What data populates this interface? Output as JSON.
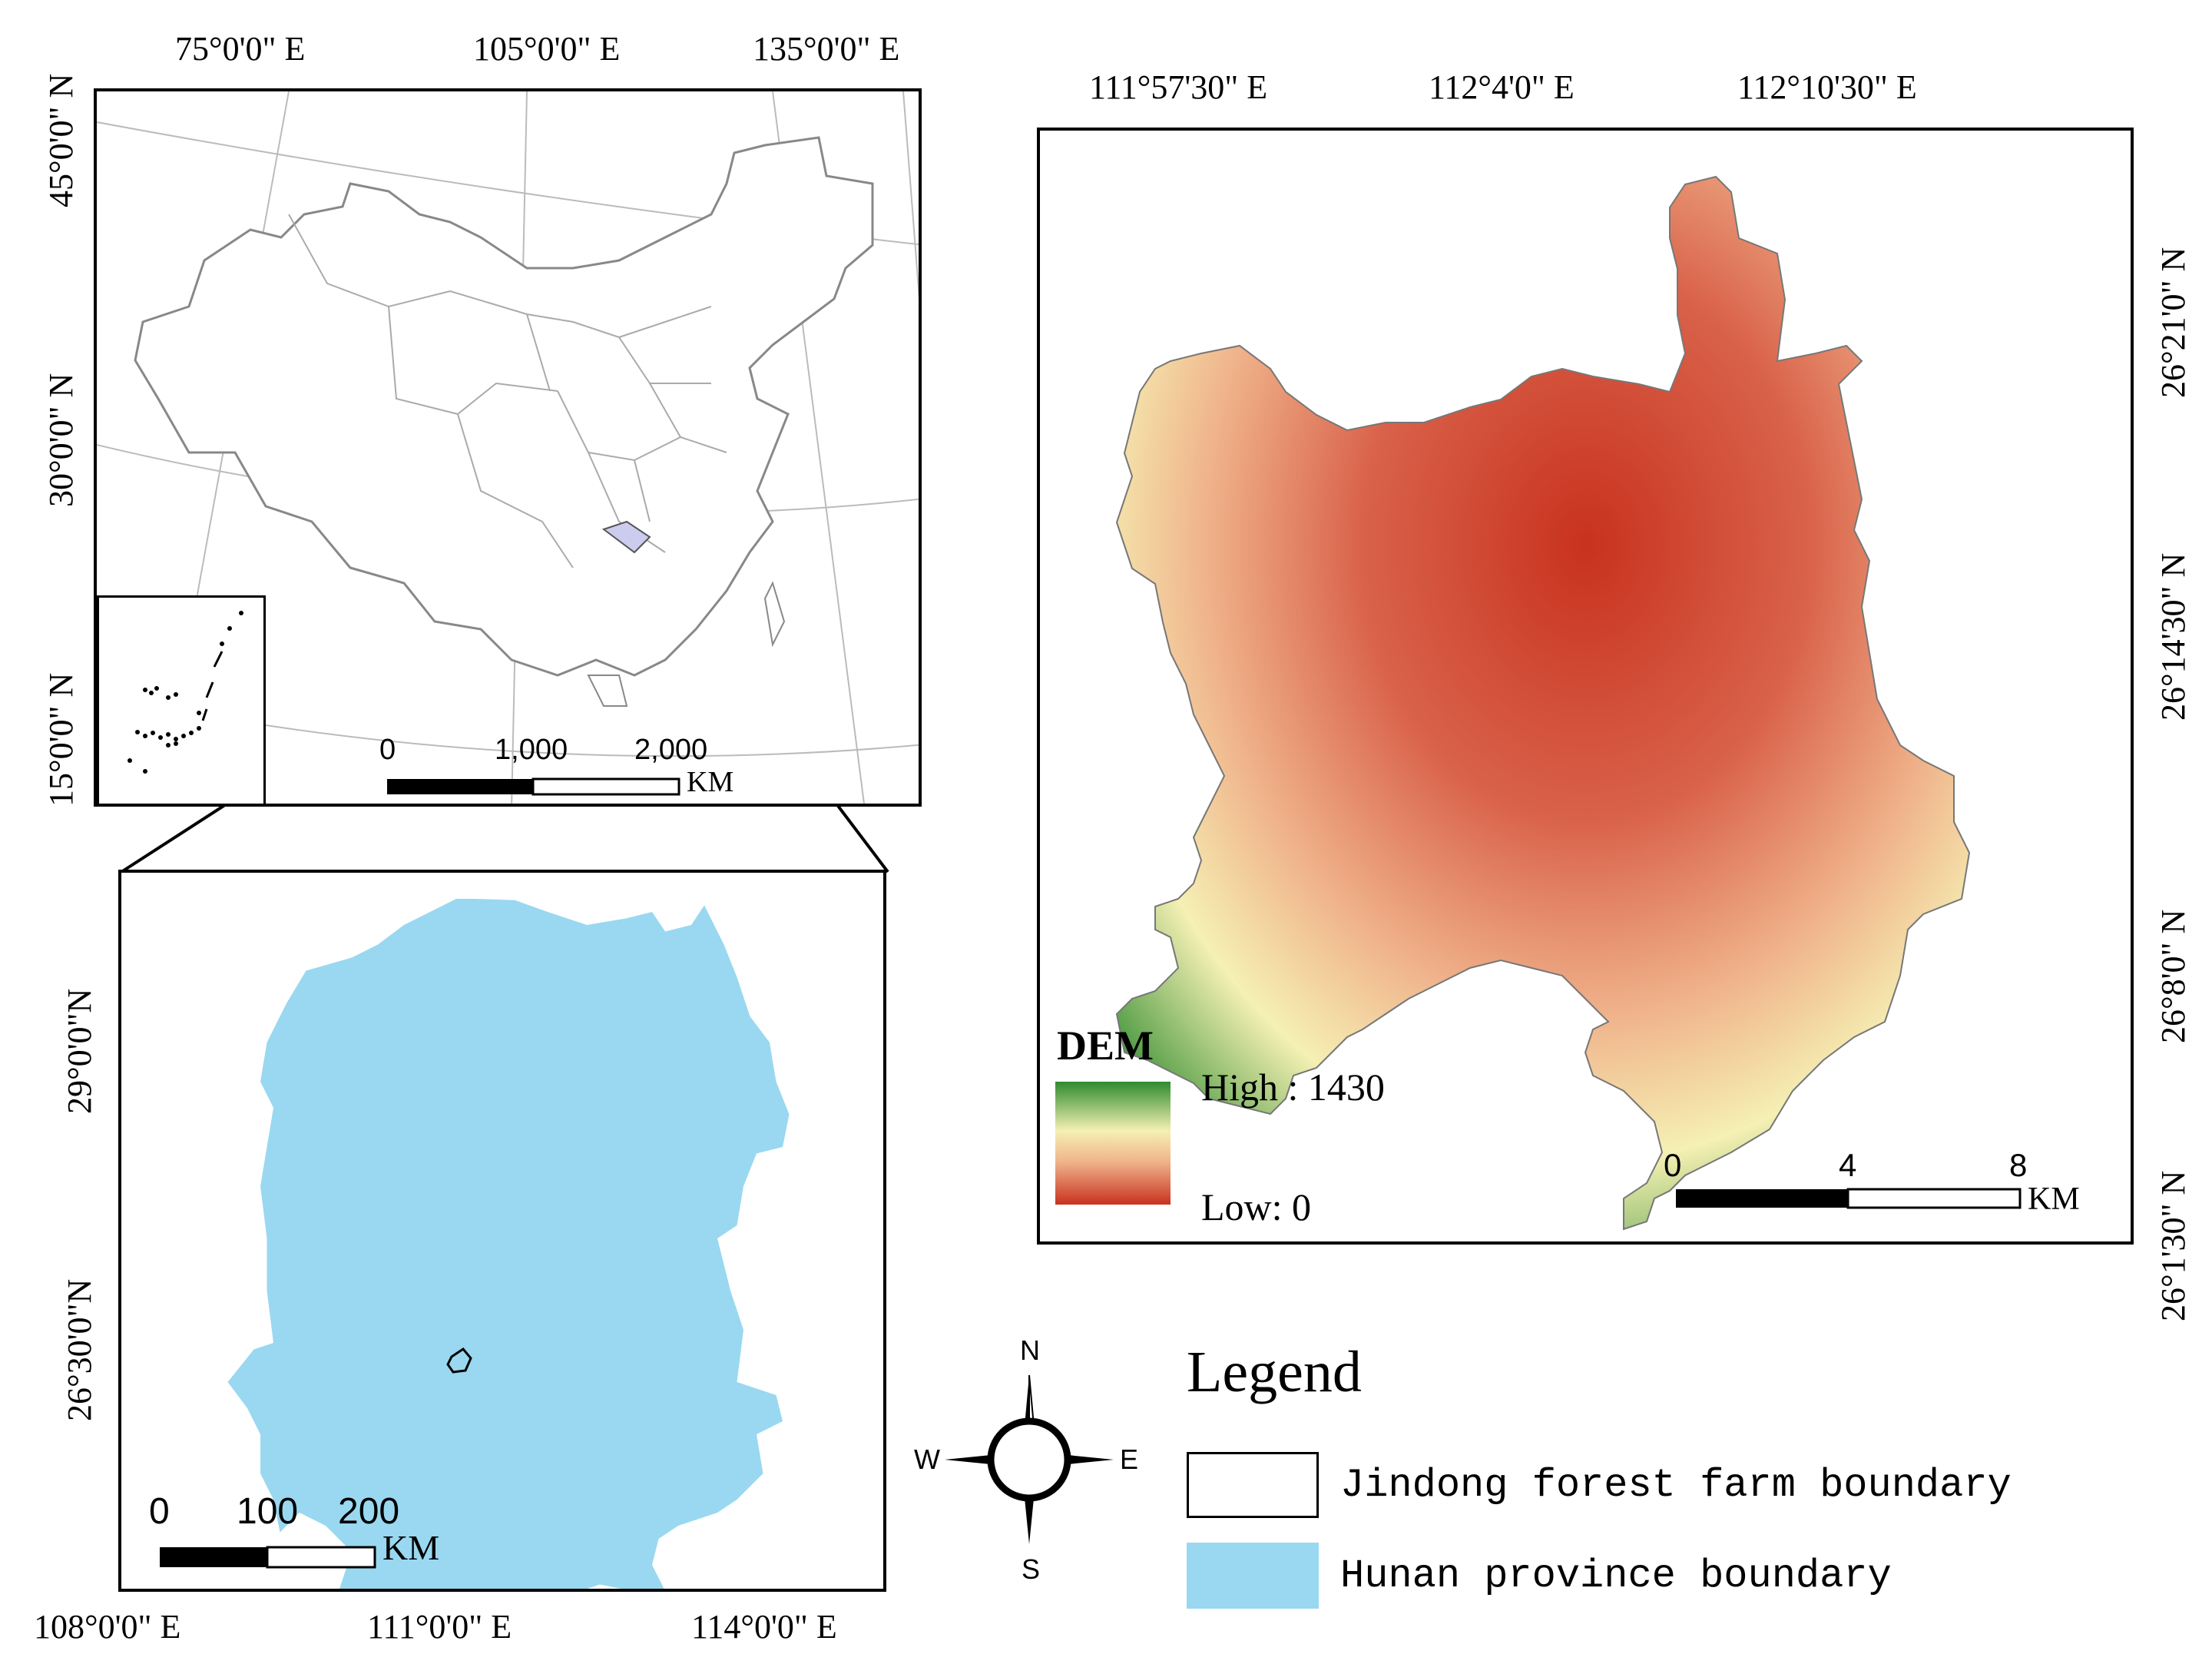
{
  "china_map": {
    "top_labels": [
      "75°0'0\" E",
      "105°0'0\" E",
      "135°0'0\" E"
    ],
    "left_labels": [
      "45°0'0\" N",
      "30°0'0\" N",
      "15°0'0\" N"
    ],
    "scale": {
      "ticks": [
        "0",
        "1,000",
        "2,000"
      ],
      "unit": "KM"
    }
  },
  "hunan_map": {
    "bottom_labels": [
      "108°0'0\" E",
      "111°0'0\" E",
      "114°0'0\" E"
    ],
    "left_labels": [
      "29°0'0\"N",
      "26°30'0\"N"
    ],
    "scale": {
      "ticks": [
        "0",
        "100",
        "200"
      ],
      "unit": "KM"
    },
    "fill_color": "#99d8f0"
  },
  "dem_map": {
    "top_labels": [
      "111°57'30\" E",
      "112°4'0\" E",
      "112°10'30\" E"
    ],
    "right_labels": [
      "26°21'0\" N",
      "26°14'30\" N",
      "26°8'0\" N",
      "26°1'30\" N"
    ],
    "dem_legend": {
      "title": "DEM",
      "high": "High : 1430",
      "low": "Low: 0",
      "colors": [
        "#2e8b2e",
        "#f5f0b4",
        "#f0b48c",
        "#c8321e"
      ]
    },
    "scale": {
      "ticks": [
        "0",
        "4",
        "8"
      ],
      "unit": "KM"
    }
  },
  "compass": {
    "n": "N",
    "s": "S",
    "e": "E",
    "w": "W"
  },
  "legend": {
    "title": "Legend",
    "items": [
      {
        "label": "Jindong forest farm boundary",
        "swatch": "#ffffff"
      },
      {
        "label": "Hunan province boundary",
        "swatch": "#99d8f0"
      }
    ]
  }
}
